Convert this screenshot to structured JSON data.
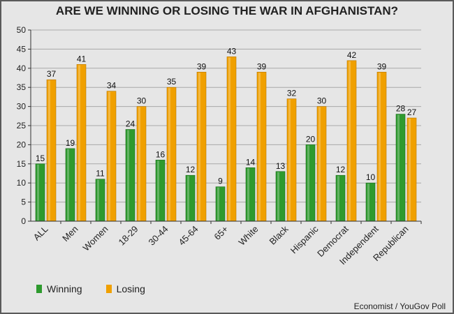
{
  "chart_data": {
    "type": "bar",
    "title": "ARE WE WINNING OR LOSING THE WAR IN AFGHANISTAN?",
    "categories": [
      "ALL",
      "Men",
      "Women",
      "18-29",
      "30-44",
      "45-64",
      "65+",
      "White",
      "Black",
      "Hispanic",
      "Democrat",
      "Independent",
      "Republican"
    ],
    "series": [
      {
        "name": "Winning",
        "color": "#2e9a2e",
        "values": [
          15,
          19,
          11,
          24,
          16,
          12,
          9,
          14,
          13,
          20,
          12,
          10,
          28
        ]
      },
      {
        "name": "Losing",
        "color": "#f0a000",
        "values": [
          37,
          41,
          34,
          30,
          35,
          39,
          43,
          39,
          32,
          30,
          42,
          39,
          27
        ]
      }
    ],
    "ylim": [
      0,
      50
    ],
    "yticks": [
      0,
      5,
      10,
      15,
      20,
      25,
      30,
      35,
      40,
      45,
      50
    ],
    "xlabel": "",
    "ylabel": "",
    "grid": true,
    "legend": "bottom-left"
  },
  "source": "Economist / YouGov Poll"
}
